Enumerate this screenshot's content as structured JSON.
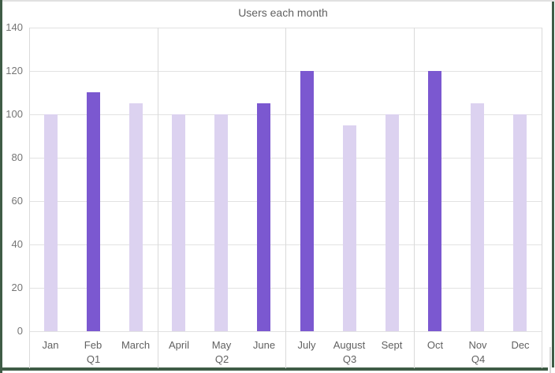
{
  "ui": {
    "selection_border_color": "#3F5C46",
    "top_edge_color": "#E1E1E1",
    "background": "#FFFFFF"
  },
  "chart_data": {
    "type": "bar",
    "title": "Users each month",
    "categories": [
      "Jan",
      "Feb",
      "March",
      "April",
      "May",
      "June",
      "July",
      "August",
      "Sept",
      "Oct",
      "Nov",
      "Dec"
    ],
    "values": [
      100,
      110,
      105,
      100,
      100,
      105,
      120,
      95,
      100,
      120,
      105,
      100
    ],
    "group_labels": [
      "Q1",
      "Q2",
      "Q3",
      "Q4"
    ],
    "group_size": 3,
    "highlighted_categories": [
      "Feb",
      "June",
      "July",
      "Oct"
    ],
    "xlabel": "",
    "ylabel": "",
    "ylim": [
      0,
      140
    ],
    "ytick_step": 20,
    "yticks": [
      0,
      20,
      40,
      60,
      80,
      100,
      120,
      140
    ],
    "grid": true,
    "legend_position": "none",
    "colors": {
      "bar_default": "#DCD2F0",
      "bar_highlight": "#7B58D0",
      "gridline": "#E2E2E2",
      "separator_line": "#DADADA",
      "axis_text": "#757575",
      "label_text": "#616161",
      "title_text": "#616161"
    }
  }
}
